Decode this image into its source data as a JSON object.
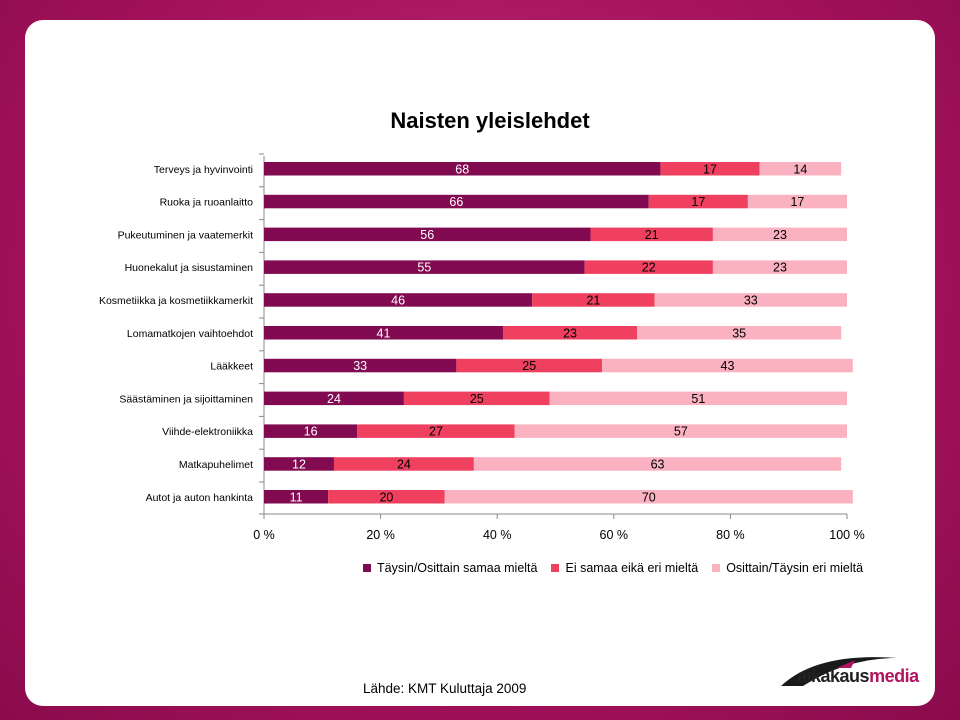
{
  "chart_data": {
    "type": "bar",
    "orientation": "horizontal",
    "stacked": "percent",
    "title": "Naisten yleislehdet",
    "categories": [
      "Terveys ja hyvinvointi",
      "Ruoka ja ruoanlaitto",
      "Pukeutuminen ja vaatemerkit",
      "Huonekalut ja sisustaminen",
      "Kosmetiikka ja kosmetiikkamerkit",
      "Lomamatkojen vaihtoehdot",
      "Lääkkeet",
      "Säästäminen ja sijoittaminen",
      "Viihde-elektroniikka",
      "Matkapuhelimet",
      "Autot ja auton hankinta"
    ],
    "series": [
      {
        "name": "Täysin/Osittain samaa mieltä",
        "color": "#820a50",
        "values": [
          68,
          66,
          56,
          55,
          46,
          41,
          33,
          24,
          16,
          12,
          11
        ]
      },
      {
        "name": "Ei samaa eikä eri mieltä",
        "color": "#ef4060",
        "values": [
          17,
          17,
          21,
          22,
          21,
          23,
          25,
          25,
          27,
          24,
          20
        ]
      },
      {
        "name": "Osittain/Täysin eri mieltä",
        "color": "#fbb2c0",
        "values": [
          14,
          17,
          23,
          23,
          33,
          35,
          43,
          51,
          57,
          63,
          70
        ]
      }
    ],
    "xlim": [
      0,
      100
    ],
    "xticks": [
      "0 %",
      "20 %",
      "40 %",
      "60 %",
      "80 %",
      "100 %"
    ],
    "legend": "bottom"
  },
  "source": "Lähde: KMT Kuluttaja 2009",
  "logo": {
    "part1": "aikakaus",
    "part2": "media"
  }
}
